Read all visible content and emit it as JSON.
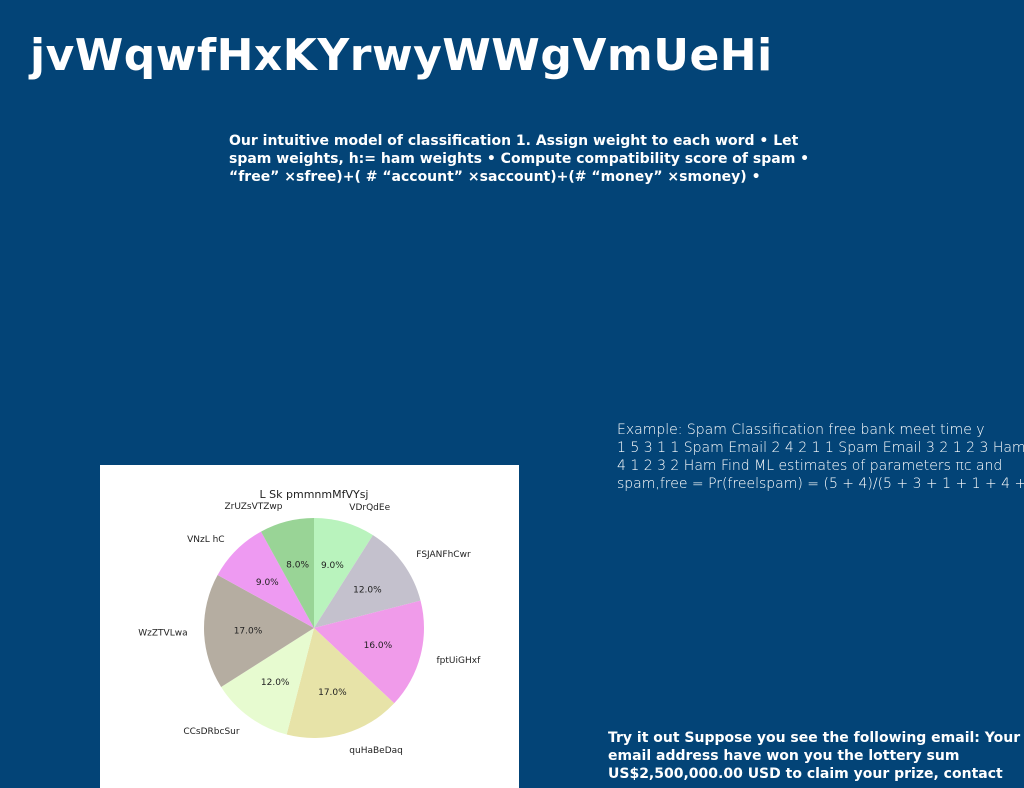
{
  "slide": {
    "title": "jvWqwfHxKYrwyWWgVmUeHi",
    "intro": "Our intuitive model of classification 1. Assign weight to each word • Let spam weights, h:= ham weights • Compute compatibility score of spam • “free” ×sfree)+( # “account” ×saccount)+(# “money” ×smoney) •",
    "example_lines": [
      "Example: Spam Classification free bank meet time y",
      "1 5 3 1 1 Spam Email 2 4 2 1 1 Spam Email 3 2 1 2 3 Ham",
      "4 1 2 3 2 Ham Find ML estimates of parameters πc and",
      "spam,free = Pr(freelspam) = (5 + 4)/(5 + 3 + 1 + 1 + 4 +"
    ],
    "try_it": "Try it out Suppose you see the following email: Your email address have won you the lottery sum US$2,500,000.00 USD to claim your prize, contact"
  },
  "chart_data": {
    "type": "pie",
    "title": "L Sk pmmnmMfVYsj",
    "start_angle": 90,
    "direction": "clockwise",
    "categories": [
      "VDrQdEe",
      "FSJANFhCwr",
      "fptUiGHxf",
      "quHaBeDaq",
      "CCsDRbcSur",
      "WzZTVLwa",
      "VNzL hC",
      "ZrUZsVTZwp"
    ],
    "values": [
      9.0,
      12.0,
      16.0,
      17.0,
      12.0,
      17.0,
      9.0,
      8.0
    ],
    "value_labels": [
      "9.0%",
      "12.0%",
      "16.0%",
      "17.0%",
      "12.0%",
      "17.0%",
      "9.0%",
      "8.0%"
    ],
    "colors": [
      "#b9f3bd",
      "#c4c1cd",
      "#f09bea",
      "#e7e3a8",
      "#e7fbd0",
      "#b5ada1",
      "#ee9af2",
      "#99d496"
    ]
  }
}
